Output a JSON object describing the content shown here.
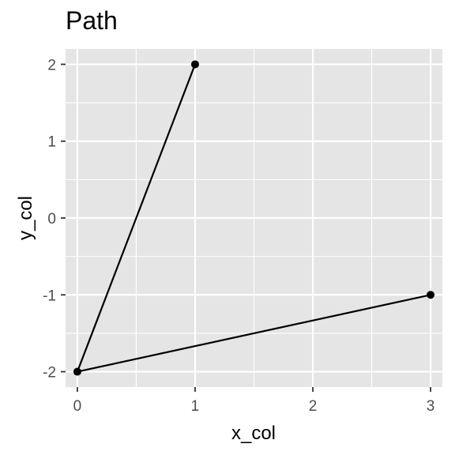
{
  "chart_data": {
    "type": "line",
    "title": "Path",
    "xlabel": "x_col",
    "ylabel": "y_col",
    "x": [
      1,
      0,
      3
    ],
    "y": [
      2,
      -2,
      -1
    ],
    "xlim": [
      -0.1,
      3.1
    ],
    "ylim": [
      -2.2,
      2.2
    ],
    "x_ticks": [
      0,
      1,
      2,
      3
    ],
    "x_tick_labels": [
      "0",
      "1",
      "2",
      "3"
    ],
    "y_ticks": [
      2,
      1,
      0,
      -1,
      -2
    ],
    "y_tick_labels": [
      "2",
      "1",
      "0",
      "-1",
      "-2"
    ],
    "grid": true,
    "legend": "none",
    "colors": {
      "panel": "#e5e5e5",
      "grid": "#ffffff",
      "line": "#000000",
      "point": "#000000"
    }
  }
}
